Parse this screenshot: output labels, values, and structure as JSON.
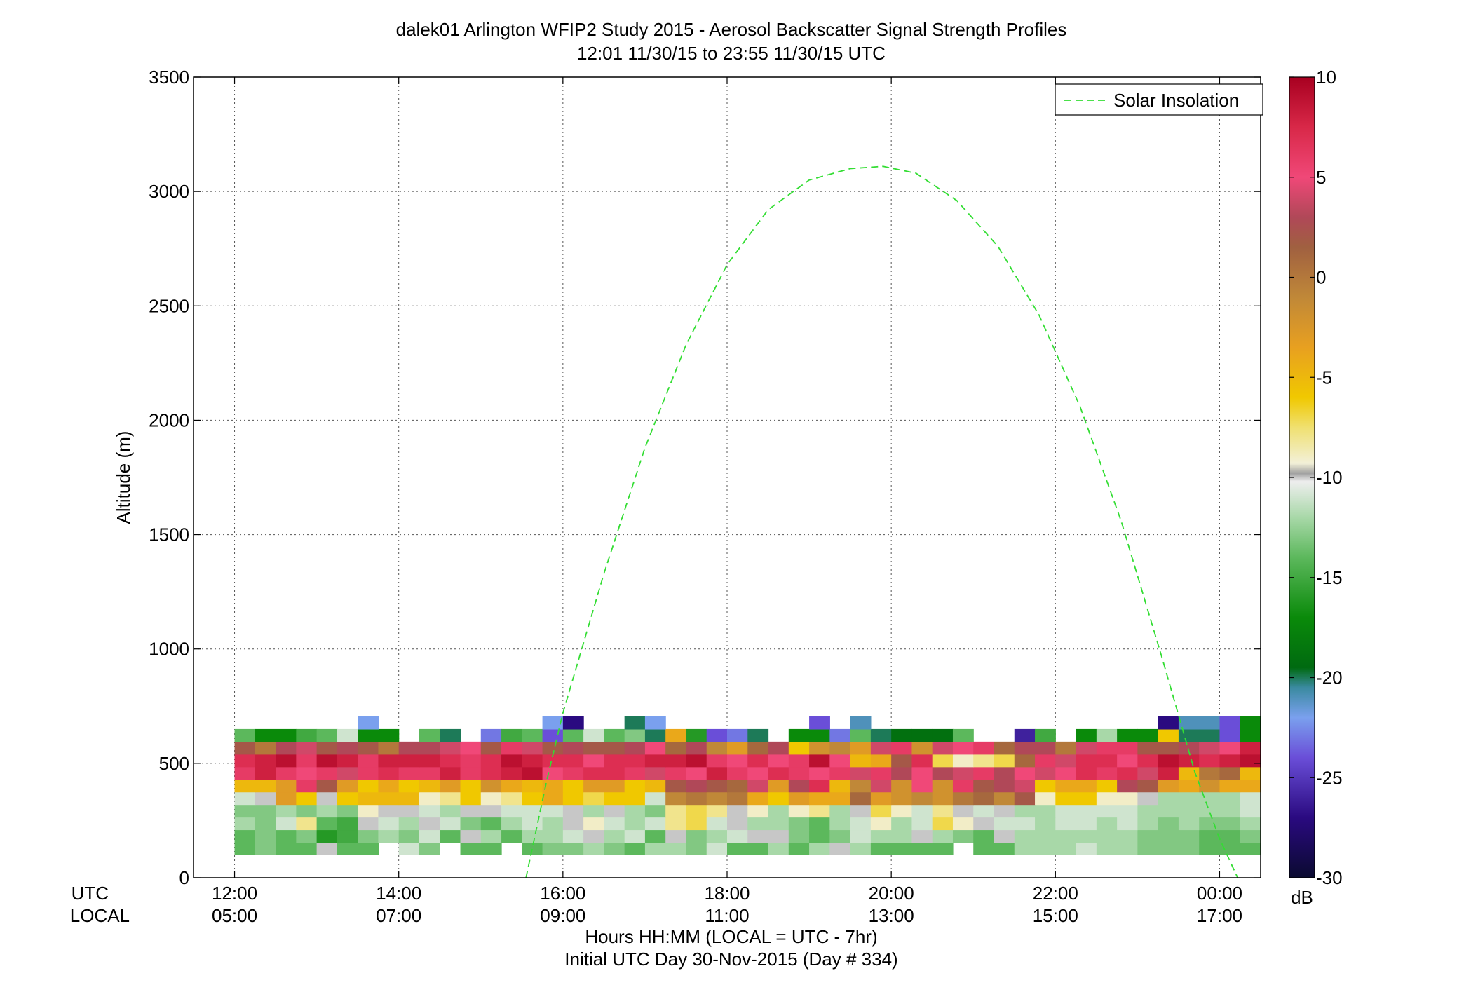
{
  "chart_data": {
    "type": "heatmap",
    "title": "dalek01 Arlington WFIP2 Study 2015 - Aerosol Backscatter Signal Strength Profiles",
    "subtitle": "12:01 11/30/15 to 23:55 11/30/15  UTC",
    "ylabel": "Altitude (m)",
    "xlabel": "Hours HH:MM  (LOCAL = UTC - 7hr)",
    "xlabel2": "Initial UTC Day 30-Nov-2015 (Day # 334)",
    "xrow_labels": [
      "UTC",
      "LOCAL"
    ],
    "x_range_hours": [
      11.5,
      24.5
    ],
    "ylim": [
      0,
      3500
    ],
    "y_ticks": [
      0,
      500,
      1000,
      1500,
      2000,
      2500,
      3000,
      3500
    ],
    "x_ticks": [
      {
        "hour": 12,
        "utc": "12:00",
        "local": "05:00"
      },
      {
        "hour": 14,
        "utc": "14:00",
        "local": "07:00"
      },
      {
        "hour": 16,
        "utc": "16:00",
        "local": "09:00"
      },
      {
        "hour": 18,
        "utc": "18:00",
        "local": "11:00"
      },
      {
        "hour": 20,
        "utc": "20:00",
        "local": "13:00"
      },
      {
        "hour": 22,
        "utc": "22:00",
        "local": "15:00"
      },
      {
        "hour": 24,
        "utc": "00:00",
        "local": "17:00"
      }
    ],
    "grid": true,
    "legend": {
      "entries": [
        "Solar Insolation"
      ],
      "placement": "top-right"
    },
    "colorbar": {
      "label": "dB",
      "min": -30,
      "max": 10,
      "ticks": [
        10,
        5,
        0,
        -5,
        -10,
        -15,
        -20,
        -25,
        -30
      ],
      "stops": [
        {
          "v": -30,
          "c": "#0a0a30"
        },
        {
          "v": -27,
          "c": "#2a0a80"
        },
        {
          "v": -24,
          "c": "#6a4ed8"
        },
        {
          "v": -22,
          "c": "#7aa0ee"
        },
        {
          "v": -20.5,
          "c": "#3a8aa0"
        },
        {
          "v": -19.5,
          "c": "#006a10"
        },
        {
          "v": -17,
          "c": "#0a8a0a"
        },
        {
          "v": -14,
          "c": "#5cb85c"
        },
        {
          "v": -12,
          "c": "#a8d8a8"
        },
        {
          "v": -10.2,
          "c": "#eeeeee"
        },
        {
          "v": -9.8,
          "c": "#a0a0a0"
        },
        {
          "v": -9.3,
          "c": "#f2f0d8"
        },
        {
          "v": -7.5,
          "c": "#f0e070"
        },
        {
          "v": -6,
          "c": "#f0c800"
        },
        {
          "v": -3.5,
          "c": "#e8a020"
        },
        {
          "v": -1,
          "c": "#c08838"
        },
        {
          "v": 1.5,
          "c": "#a06040"
        },
        {
          "v": 3,
          "c": "#b04858"
        },
        {
          "v": 5,
          "c": "#f04878"
        },
        {
          "v": 7.5,
          "c": "#d82848"
        },
        {
          "v": 10,
          "c": "#a80020"
        }
      ]
    },
    "heatmap": {
      "time_start_hour": 12,
      "time_step_hours": 0.25,
      "alt_start_m": 100,
      "alt_step_m": 55,
      "rows": [
        [
          -14,
          -13,
          -14,
          -14,
          -10,
          -14,
          -14,
          null,
          -11,
          -13,
          null,
          -14,
          -14,
          null,
          -14,
          -13,
          -13,
          -12,
          -13,
          -14,
          -12,
          -12,
          -13,
          -11,
          -14,
          -14,
          -12,
          -14,
          -12,
          -10,
          -12,
          -14,
          -14,
          -14,
          -14,
          null,
          -14,
          -14,
          -12,
          -12,
          -12,
          -11,
          -12,
          -12,
          -13,
          -13,
          -13,
          -14,
          -14,
          -14
        ],
        [
          -14,
          -13,
          -14,
          -13,
          -16,
          -15,
          -13,
          -12,
          -13,
          -11,
          -14,
          -10,
          -12,
          -14,
          -12,
          -12,
          -11,
          -10,
          -12,
          -11,
          -14,
          -10,
          -13,
          -12,
          -11,
          -10,
          -10,
          -13,
          -14,
          -13,
          -11,
          -12,
          -12,
          -10,
          -12,
          -13,
          -14,
          -10,
          -12,
          -12,
          -12,
          -12,
          -12,
          -12,
          -13,
          -13,
          -13,
          -14,
          -14,
          -13
        ],
        [
          -12,
          -13,
          -11,
          -8,
          -14,
          -15,
          -10,
          -11,
          -12,
          -10,
          -11,
          -13,
          -14,
          -12,
          -11,
          -12,
          -10,
          -9,
          -11,
          -12,
          -11,
          -8,
          -7,
          -11,
          -10,
          -12,
          -12,
          -13,
          -14,
          -12,
          -11,
          -9,
          -12,
          -11,
          -7,
          -9,
          -10,
          -11,
          -11,
          -12,
          -11,
          -11,
          -12,
          -11,
          -12,
          -13,
          -12,
          -13,
          -13,
          -12
        ],
        [
          -13,
          -13,
          -12,
          -13,
          -12,
          -13,
          -9,
          -10,
          -10,
          -11,
          -12,
          -10,
          -10,
          -11,
          -11,
          -11,
          -10,
          -12,
          -10,
          -12,
          -13,
          -8,
          -7,
          -8,
          -10,
          -9,
          -12,
          -9,
          -8,
          -12,
          -10,
          -7,
          -9,
          -11,
          -8,
          -10,
          -11,
          -10,
          -12,
          -12,
          -11,
          -11,
          -11,
          -11,
          -12,
          -12,
          -12,
          -12,
          -12,
          -11
        ],
        [
          -11,
          -10,
          -3,
          -6,
          -10,
          -6,
          -5,
          -5,
          -5,
          -9,
          -8,
          -6,
          -9,
          -8,
          -6,
          -4,
          -6,
          -7,
          -6,
          -6,
          -11,
          -1,
          0,
          -1,
          0,
          -4,
          -6,
          -3,
          -4,
          -4,
          1,
          -3,
          -2,
          -1,
          -2,
          0,
          1,
          -1,
          2,
          -9,
          -6,
          -6,
          -9,
          -9,
          -10,
          -12,
          -12,
          -12,
          -12,
          -11
        ],
        [
          -5,
          -5,
          -3,
          6,
          2,
          -3,
          -6,
          -4,
          -6,
          -5,
          -3,
          -6,
          -2,
          -4,
          -5,
          -4,
          -6,
          -3,
          -3,
          -6,
          -5,
          2,
          3,
          2,
          1,
          4,
          -3,
          3,
          7,
          -5,
          -1,
          4,
          -2,
          5,
          -2,
          6,
          2,
          3,
          4,
          -6,
          -4,
          -4,
          -6,
          3,
          2,
          -3,
          -4,
          -2,
          -4,
          -4
        ],
        [
          6,
          8,
          6,
          5,
          6,
          4,
          6,
          7,
          6,
          6,
          8,
          6,
          7,
          8,
          9,
          5,
          6,
          7,
          7,
          6,
          4,
          6,
          5,
          8,
          6,
          5,
          7,
          6,
          5,
          6,
          4,
          6,
          3,
          5,
          3,
          4,
          6,
          3,
          5,
          4,
          5,
          7,
          6,
          7,
          4,
          8,
          -5,
          0,
          1,
          -5
        ],
        [
          7,
          8,
          9,
          6,
          9,
          8,
          6,
          8,
          8,
          8,
          7,
          6,
          7,
          9,
          8,
          7,
          7,
          5,
          7,
          7,
          8,
          8,
          9,
          6,
          5,
          7,
          5,
          6,
          9,
          5,
          -5,
          -4,
          2,
          7,
          -7,
          -9,
          -8,
          -7,
          1,
          6,
          4,
          7,
          7,
          5,
          7,
          9,
          8,
          7,
          8,
          9
        ],
        [
          2,
          0,
          3,
          4,
          2,
          3,
          2,
          0,
          3,
          3,
          4,
          5,
          2,
          6,
          4,
          2,
          3,
          2,
          2,
          3,
          5,
          1,
          3,
          -1,
          -3,
          1,
          3,
          -6,
          -2,
          -1,
          -3,
          4,
          6,
          -2,
          4,
          5,
          6,
          1,
          3,
          3,
          0,
          4,
          6,
          6,
          2,
          2,
          3,
          4,
          5,
          8
        ],
        [
          -14,
          -17,
          -17,
          -15,
          -14,
          -11,
          -17,
          -17,
          null,
          -14,
          -20,
          null,
          -23,
          -15,
          -14,
          -24,
          -14,
          -11,
          -14,
          -13,
          -20,
          -4,
          -16,
          -24,
          -23,
          -20,
          null,
          -17,
          -17,
          -23,
          -14,
          -20,
          -19,
          -19,
          -19,
          -14,
          null,
          null,
          -26,
          -15,
          null,
          -17,
          -12,
          -17,
          -17,
          -6,
          -20,
          -20,
          -24,
          -17
        ],
        [
          null,
          null,
          null,
          null,
          null,
          null,
          -22,
          null,
          null,
          null,
          null,
          null,
          null,
          null,
          null,
          -22,
          -27,
          null,
          null,
          -20,
          -22,
          null,
          null,
          null,
          null,
          null,
          null,
          null,
          -24,
          null,
          -21,
          null,
          null,
          null,
          null,
          null,
          null,
          null,
          null,
          null,
          null,
          null,
          null,
          null,
          null,
          -27,
          -21,
          -21,
          -24,
          -17
        ]
      ]
    },
    "solar_insolation": {
      "units": "scaled to altitude axis (m)",
      "hours": [
        15.55,
        15.8,
        16.0,
        16.5,
        17.0,
        17.5,
        18.0,
        18.5,
        19.0,
        19.5,
        19.9,
        20.3,
        20.8,
        21.3,
        21.8,
        22.3,
        22.8,
        23.3,
        23.7,
        24.0,
        24.22
      ],
      "values": [
        0,
        420,
        720,
        1330,
        1880,
        2330,
        2680,
        2920,
        3050,
        3100,
        3110,
        3080,
        2960,
        2760,
        2460,
        2060,
        1560,
        960,
        460,
        170,
        0
      ]
    }
  }
}
